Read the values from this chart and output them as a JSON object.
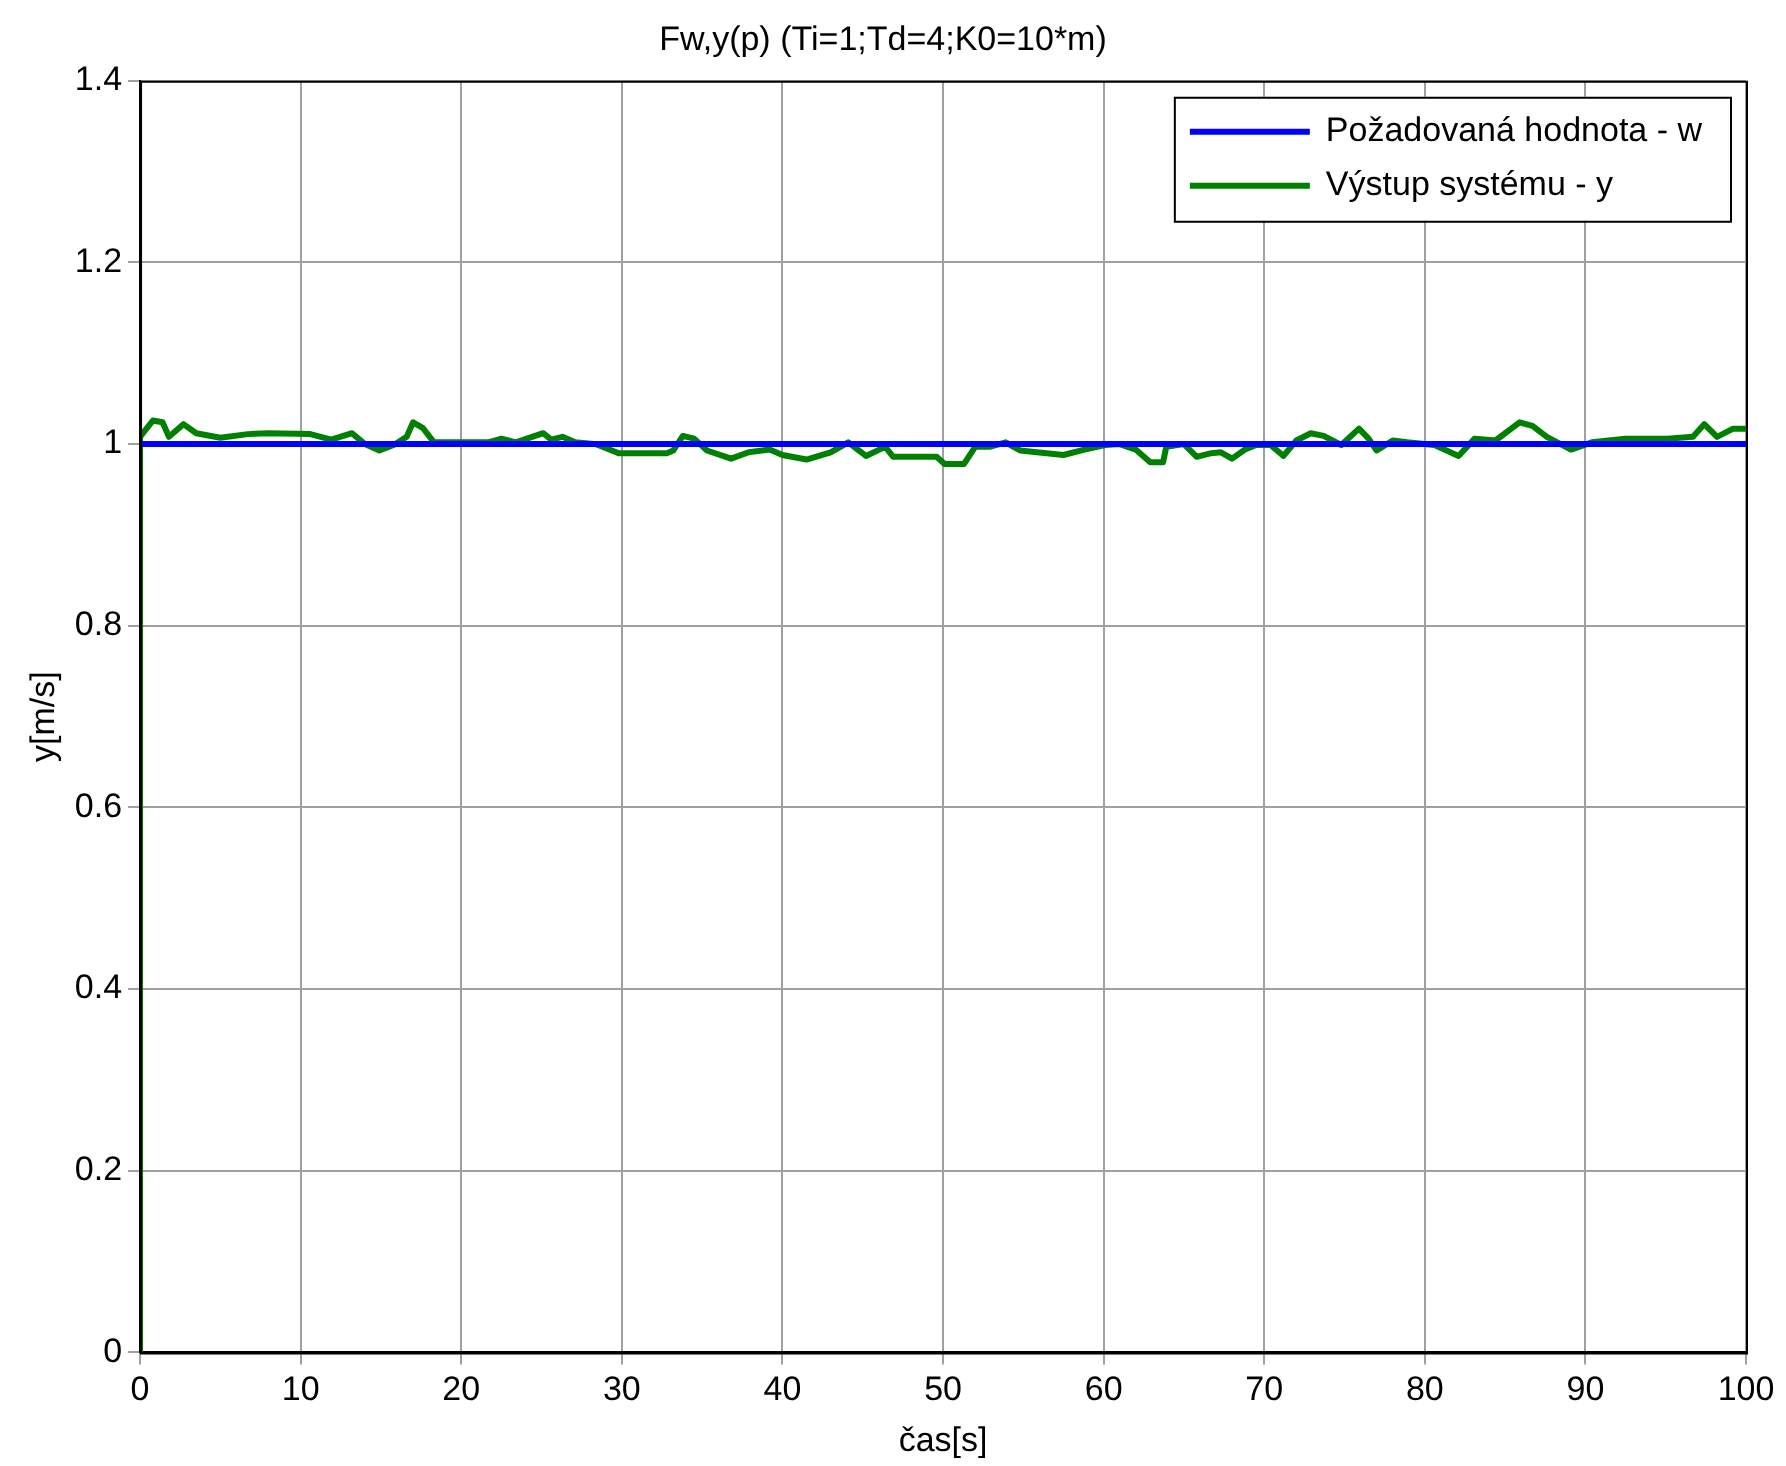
{
  "chart_data": {
    "type": "line",
    "title": "Fw,y(p) (Ti=1;Td=4;K0=10*m)",
    "xlabel": "čas[s]",
    "ylabel": "y[m/s]",
    "xlim": [
      0,
      100
    ],
    "xticks": [
      0,
      10,
      20,
      30,
      40,
      50,
      60,
      70,
      80,
      90,
      100
    ],
    "ylim": [
      0,
      1.4
    ],
    "yticks": [
      0,
      0.2,
      0.4,
      0.6,
      0.8,
      1,
      1.2,
      1.4
    ],
    "grid": true,
    "legend": "top right",
    "marker": "none",
    "line_style": "solid",
    "series": [
      {
        "name": "Požadovaná hodnota - w",
        "color": "#0000ff",
        "x": [
          0,
          100
        ],
        "values": [
          1,
          1
        ]
      },
      {
        "name": "Výstup systému - y",
        "color": "#008000",
        "x": [
          0,
          0,
          0.8,
          1.4,
          1.8,
          2.7,
          3.5,
          5,
          6.7,
          8,
          10.6,
          11.9,
          13.2,
          14,
          14.9,
          15.9,
          16.6,
          17,
          17.6,
          18.3,
          21.7,
          22.5,
          23.4,
          25.1,
          25.6,
          26.3,
          27.1,
          28.4,
          29.8,
          32.8,
          33.2,
          33.8,
          34.5,
          35.3,
          36.8,
          37.9,
          39.2,
          40,
          41.5,
          43,
          44.1,
          45.2,
          46.4,
          46.9,
          49.6,
          50.1,
          51.3,
          52,
          52.9,
          53.9,
          54.8,
          57.5,
          58.8,
          60.1,
          61,
          62,
          62.9,
          63.7,
          63.9,
          65,
          65.8,
          66.7,
          67.3,
          68,
          68.8,
          69.5,
          70.4,
          71.2,
          72,
          72.9,
          73.7,
          74.8,
          75.9,
          76.5,
          77,
          78,
          78.9,
          80.6,
          82.1,
          83.1,
          84.4,
          85.9,
          86.7,
          87.6,
          89.1,
          90.4,
          92.5,
          95.1,
          96.7,
          97.4,
          98.2,
          99.2,
          100
        ],
        "values": [
          0,
          1.008,
          1.026,
          1.024,
          1.008,
          1.022,
          1.012,
          1.007,
          1.011,
          1.012,
          1.011,
          1.005,
          1.012,
          1,
          0.993,
          1,
          1.008,
          1.024,
          1.018,
          1.002,
          1.002,
          1.006,
          1.002,
          1.012,
          1.005,
          1.008,
          1.002,
          1,
          0.99,
          0.99,
          0.993,
          1.009,
          1.006,
          0.993,
          0.984,
          0.991,
          0.994,
          0.988,
          0.983,
          0.991,
          1.002,
          0.987,
          0.997,
          0.986,
          0.986,
          0.978,
          0.978,
          0.997,
          0.997,
          1.002,
          0.993,
          0.988,
          0.994,
          0.999,
          1,
          0.994,
          0.98,
          0.98,
          0.997,
          1,
          0.986,
          0.99,
          0.991,
          0.984,
          0.994,
          0.999,
          0.999,
          0.987,
          1.004,
          1.012,
          1.009,
          0.999,
          1.017,
          1.006,
          0.993,
          1.004,
          1.002,
          0.999,
          0.987,
          1.006,
          1.004,
          1.024,
          1.02,
          1.008,
          0.994,
          1.002,
          1.006,
          1.006,
          1.008,
          1.022,
          1.008,
          1.017,
          1.017
        ]
      }
    ]
  }
}
